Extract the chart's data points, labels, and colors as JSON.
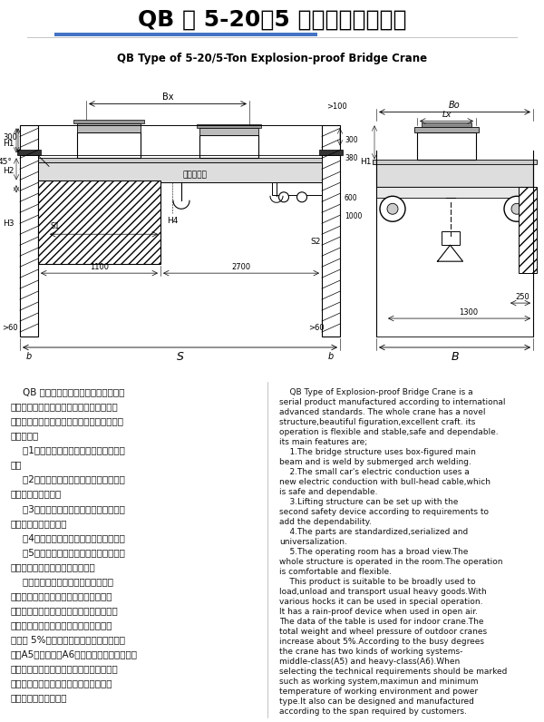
{
  "title_cn": "QB 型 5-20／5 吨防爆桥式起重机",
  "title_en": "QB Type of 5-20/5-Ton Explosion-proof Bridge Crane",
  "title_underline_color": "#4472c4",
  "bg_diagram": "#ffffff",
  "bg_text": "#dce6f1",
  "text_left_cn": [
    "    QB 型防爆桥式起重机是采用国际先进",
    "标准制造的系列产品。整机结构新颖、造型",
    "美观、工艺性好、操作灵活平稳、安全可靠。",
    "主要特点：",
    "    （1）桥架采用箱形主梁，自动埋弧焊焊",
    "接。",
    "    （2）小车导电采用工字钢轨道电缆导电",
    "新装置，安全可靠。",
    "    （3）起升机构根据要求还可设第二套安",
    "全装置，增加可靠性。",
    "    （4）零部件标准化、系列化、通用化。",
    "    （5）操纵室视野开阔，全部机构均在操",
    "纵室内操纵，工作舒适操纵灵活。",
    "    本产品广泛适用于普通重物的装卸与",
    "搬运，还可配以多种专用吊具进行特殊作",
    "业，当露天使用时带有防雨设备。表中数据",
    "为室内起重机用，室外起重机总重和轮压",
    "约增加 5%，起重机按使用繁忙程度分为中",
    "级（A5）和重级（A6）两种工作制度。选用时",
    "应注明工作制度，工作环境的最高、最低气",
    "温及电源和类等技术要求，还可根据用户",
    "要求的跨度设计制造。"
  ],
  "text_right_en": [
    "    QB Type of Explosion-proof Bridge Crane is a",
    "serial product manufactured according to international",
    "advanced standards. The whole crane has a novel",
    "structure,beautiful figuration,excellent craft. its",
    "operation is flexible and stable,safe and dependable.",
    "its main features are;",
    "    1.The bridge structure uses box-figured main",
    "beam and is weld by submerged arch welding.",
    "    2.The small car's electric conduction uses a",
    "new electric conduction with bull-head cable,which",
    "is safe and dependable.",
    "    3.Lifting structure can be set up with the",
    "second safety device according to requirements to",
    "add the dependability.",
    "    4.The parts are standardized,serialized and",
    "universalization.",
    "    5.The operating room has a broad view.The",
    "whole structure is operated in the room.The operation",
    "is comfortable and flexible.",
    "    This product is suitable to be broadly used to",
    "load,unload and transport usual heavy goods.With",
    "various hocks it can be used in special operation.",
    "It has a rain-proof device when used in open air.",
    "The data of the table is used for indoor crane.The",
    "total weight and wheel pressure of outdoor cranes",
    "increase about 5%.According to the busy degrees",
    "the crane has two kinds of working systems-",
    "middle-class(A5) and heavy-class(A6).When",
    "selecting the technical requirements should be marked",
    "such as working system,maximun and minimum",
    "temperature of working environment and power",
    "type.It also can be designed and manufactured",
    "according to the span required by customers."
  ]
}
